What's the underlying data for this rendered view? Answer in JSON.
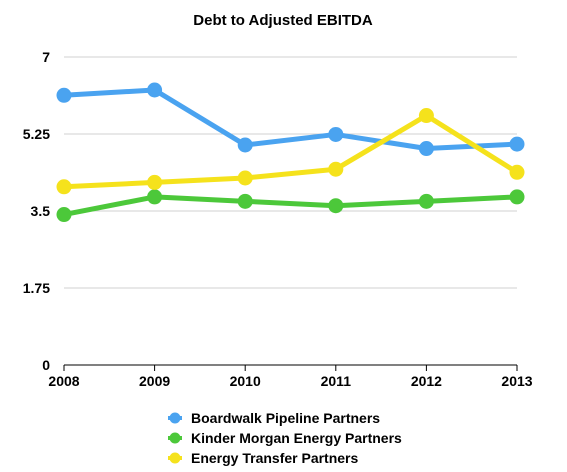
{
  "chart_data": {
    "type": "line",
    "title": "Debt to Adjusted EBITDA",
    "xlabel": "",
    "ylabel": "",
    "categories": [
      "2008",
      "2009",
      "2010",
      "2011",
      "2012",
      "2013"
    ],
    "ylim": [
      0,
      7
    ],
    "yticks": [
      "0",
      "1.75",
      "3.5",
      "5.25",
      "7"
    ],
    "grid": "horizontal",
    "legend_position": "bottom",
    "series": [
      {
        "name": "Boardwalk Pipeline Partners",
        "color": "#4aa3f0",
        "values": [
          6.13,
          6.25,
          5.0,
          5.24,
          4.92,
          5.02
        ]
      },
      {
        "name": "Kinder Morgan Energy Partners",
        "color": "#4cc83a",
        "values": [
          3.42,
          3.82,
          3.72,
          3.62,
          3.72,
          3.82
        ]
      },
      {
        "name": "Energy Transfer Partners",
        "color": "#f5e21c",
        "values": [
          4.05,
          4.15,
          4.25,
          4.45,
          5.67,
          4.38
        ]
      }
    ]
  }
}
